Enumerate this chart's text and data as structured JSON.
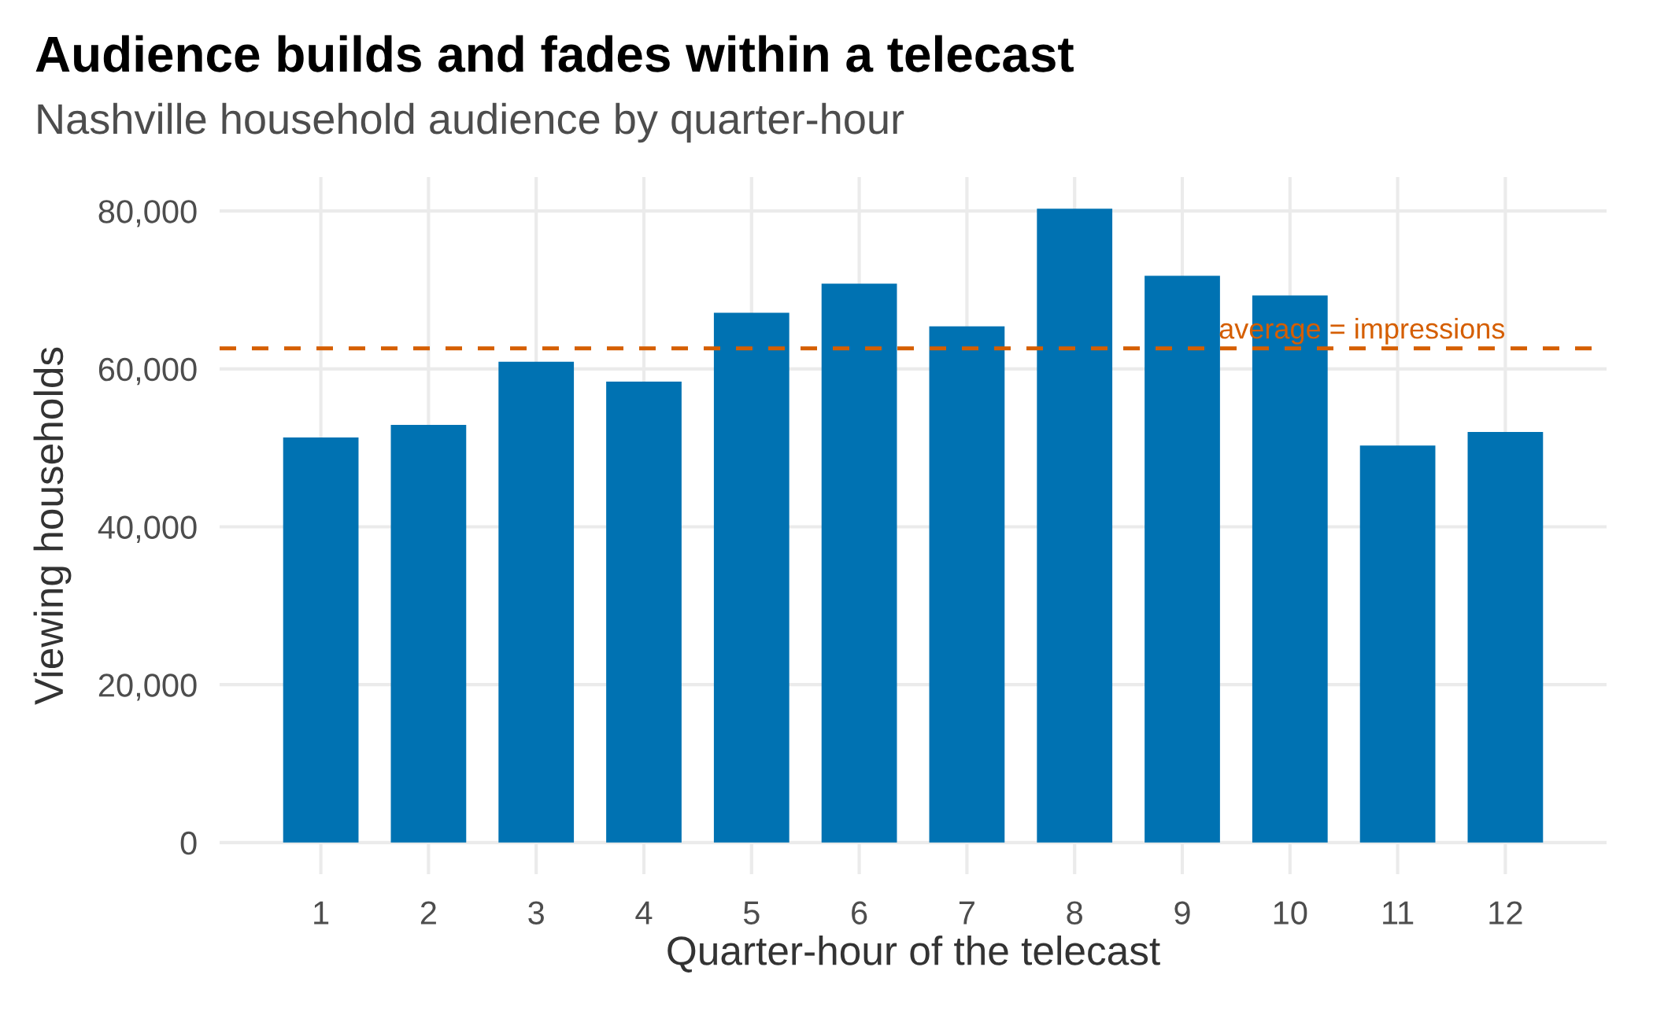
{
  "chart_data": {
    "type": "bar",
    "title": "Audience builds and fades within a telecast",
    "subtitle": "Nashville household audience by quarter-hour",
    "xlabel": "Quarter-hour of the telecast",
    "ylabel": "Viewing households",
    "categories": [
      "1",
      "2",
      "3",
      "4",
      "5",
      "6",
      "7",
      "8",
      "9",
      "10",
      "11",
      "12"
    ],
    "values": [
      51300,
      52900,
      60900,
      58400,
      67100,
      70800,
      65400,
      80300,
      71800,
      69300,
      50300,
      52000
    ],
    "color": "#0072b2",
    "ylim": [
      -4000,
      84300
    ],
    "yticks": [
      0,
      {
        "value": 20000,
        "label": "20,000"
      },
      {
        "value": 40000,
        "label": "40,000"
      },
      {
        "value": 60000,
        "label": "60,000"
      },
      {
        "value": 80000,
        "label": "80,000"
      }
    ],
    "grid": true,
    "ref_lines": [
      {
        "axis": "y",
        "value": 62600,
        "label": "average = impressions",
        "color": "#d55e00",
        "line_style": "dashed"
      }
    ]
  }
}
